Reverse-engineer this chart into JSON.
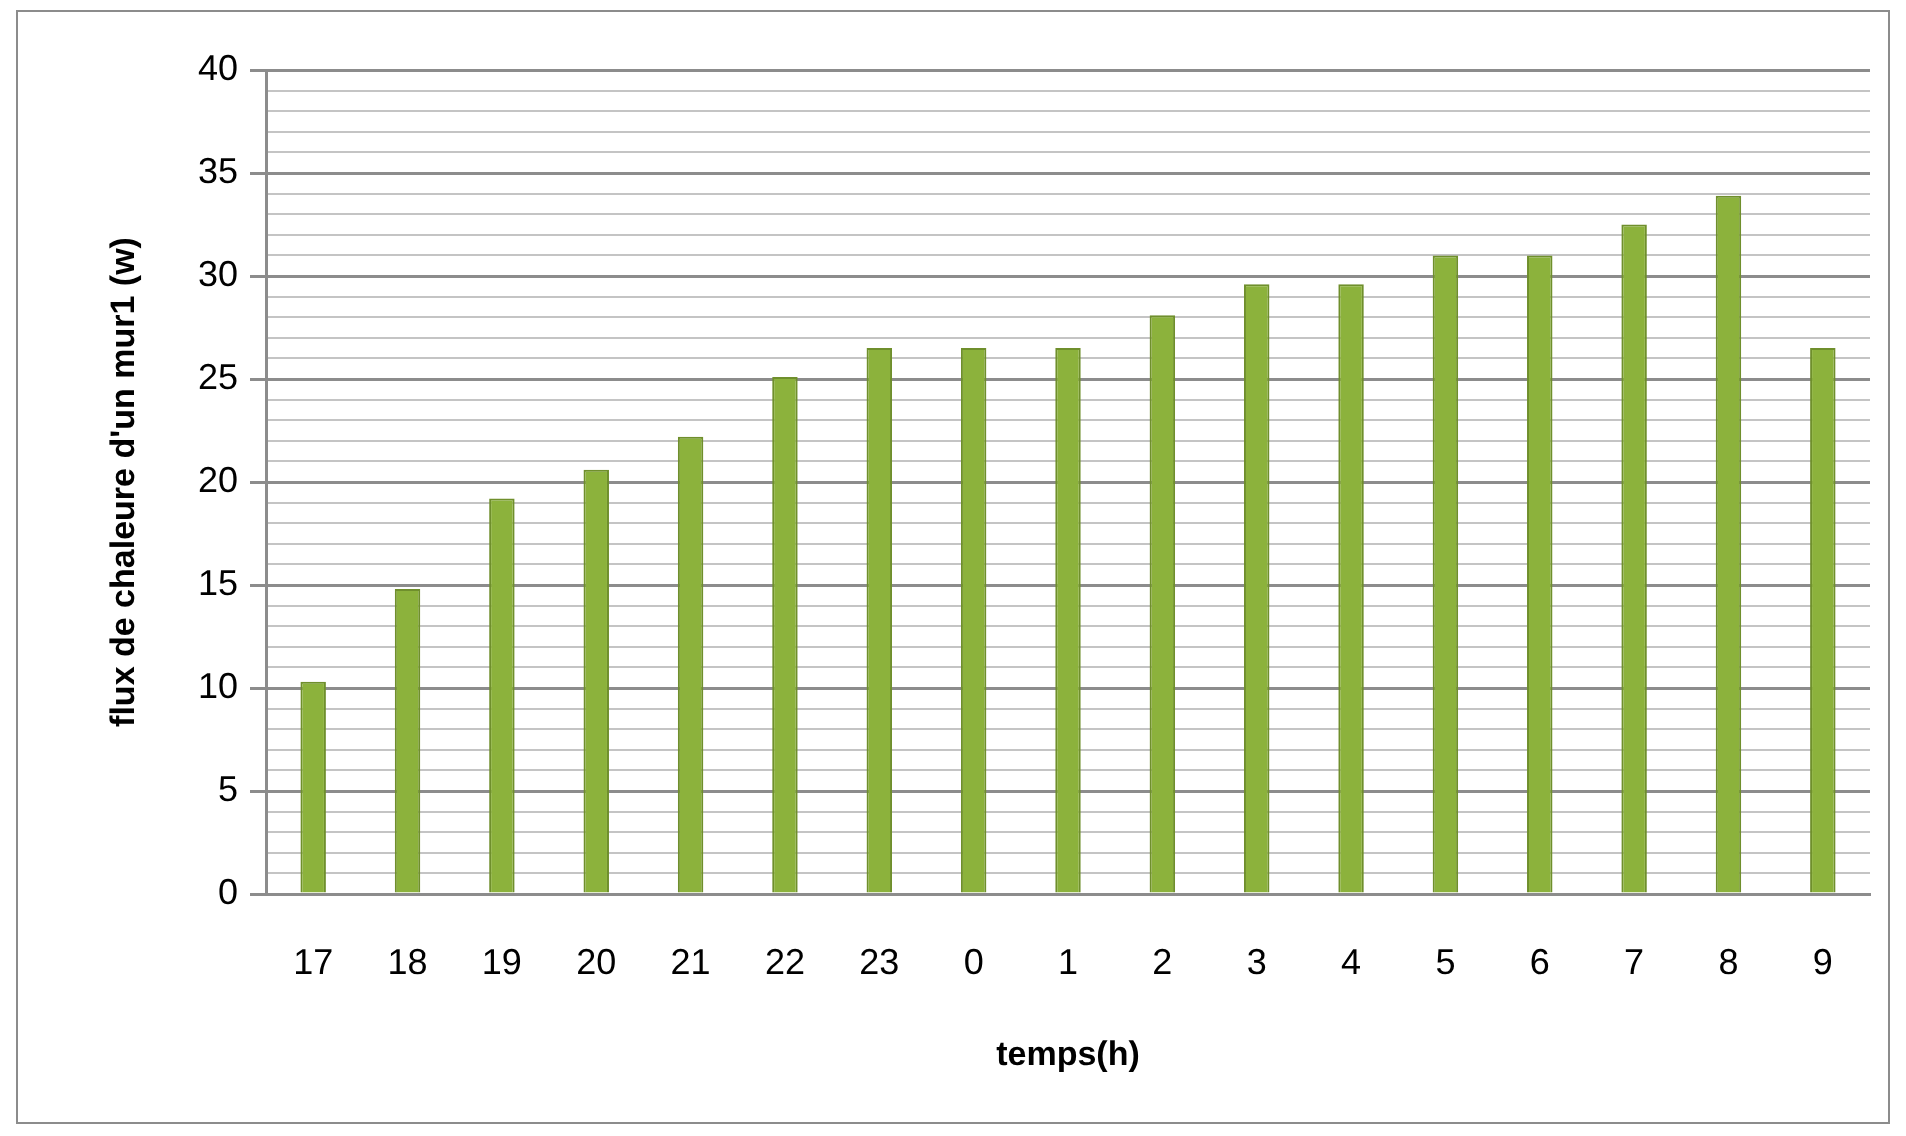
{
  "chart_data": {
    "type": "bar",
    "xlabel": "temps(h)",
    "ylabel": "flux de chaleure d'un mur1 (w)",
    "categories": [
      "17",
      "18",
      "19",
      "20",
      "21",
      "22",
      "23",
      "0",
      "1",
      "2",
      "3",
      "4",
      "5",
      "6",
      "7",
      "8",
      "9"
    ],
    "values": [
      10.3,
      14.8,
      19.2,
      20.6,
      22.2,
      25.1,
      26.5,
      26.5,
      26.5,
      28.1,
      29.6,
      29.6,
      31.0,
      31.0,
      32.5,
      33.9,
      26.5
    ],
    "color": "#8cb23c",
    "ylim": [
      0,
      40
    ],
    "yticks": [
      0,
      {
        "value": 1,
        "label": null
      },
      {
        "value": 2,
        "label": null
      },
      {
        "value": 3,
        "label": null
      },
      {
        "value": 4,
        "label": null
      },
      5,
      {
        "value": 6,
        "label": null
      },
      {
        "value": 7,
        "label": null
      },
      {
        "value": 8,
        "label": null
      },
      {
        "value": 9,
        "label": null
      },
      10,
      {
        "value": 11,
        "label": null
      },
      {
        "value": 12,
        "label": null
      },
      {
        "value": 13,
        "label": null
      },
      {
        "value": 14,
        "label": null
      },
      15,
      {
        "value": 16,
        "label": null
      },
      {
        "value": 17,
        "label": null
      },
      {
        "value": 18,
        "label": null
      },
      {
        "value": 19,
        "label": null
      },
      20,
      {
        "value": 21,
        "label": null
      },
      {
        "value": 22,
        "label": null
      },
      {
        "value": 23,
        "label": null
      },
      {
        "value": 24,
        "label": null
      },
      25,
      {
        "value": 26,
        "label": null
      },
      {
        "value": 27,
        "label": null
      },
      {
        "value": 28,
        "label": null
      },
      {
        "value": 29,
        "label": null
      },
      30,
      {
        "value": 31,
        "label": null
      },
      {
        "value": 32,
        "label": null
      },
      {
        "value": 33,
        "label": null
      },
      {
        "value": 34,
        "label": null
      },
      35,
      {
        "value": 36,
        "label": null
      },
      {
        "value": 37,
        "label": null
      },
      {
        "value": 38,
        "label": null
      },
      {
        "value": 39,
        "label": null
      },
      40
    ],
    "grid": "y"
  }
}
